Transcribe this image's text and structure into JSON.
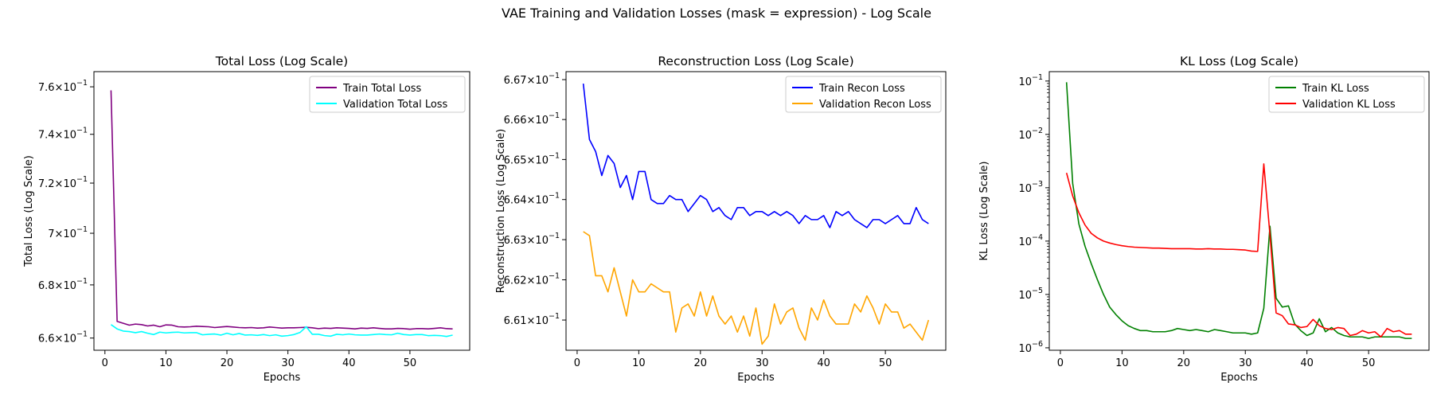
{
  "figure_title": "VAE Training and Validation Losses (mask = expression) - Log Scale",
  "chart_data": [
    {
      "type": "line",
      "title": "Total Loss (Log Scale)",
      "xlabel": "Epochs",
      "ylabel": "Total Loss (Log Scale)",
      "yscale": "log",
      "xlim": [
        -1.8,
        59.8
      ],
      "ylim": [
        0.6555,
        0.7665
      ],
      "xticks": [
        0,
        10,
        20,
        30,
        40,
        50
      ],
      "xtick_labels": [
        "0",
        "10",
        "20",
        "30",
        "40",
        "50"
      ],
      "yticks": [
        0.66,
        0.68,
        0.7,
        0.72,
        0.74,
        0.76
      ],
      "ytick_labels": [
        [
          "6.6",
          "-1"
        ],
        [
          "6.8",
          "-1"
        ],
        [
          "7",
          "-1"
        ],
        [
          "7.2",
          "-1"
        ],
        [
          "7.4",
          "-1"
        ],
        [
          "7.6",
          "-1"
        ]
      ],
      "minor_yticks": [],
      "legend_position": "upper right",
      "grid": false,
      "x": [
        1,
        2,
        3,
        4,
        5,
        6,
        7,
        8,
        9,
        10,
        11,
        12,
        13,
        14,
        15,
        16,
        17,
        18,
        19,
        20,
        21,
        22,
        23,
        24,
        25,
        26,
        27,
        28,
        29,
        30,
        31,
        32,
        33,
        34,
        35,
        36,
        37,
        38,
        39,
        40,
        41,
        42,
        43,
        44,
        45,
        46,
        47,
        48,
        49,
        50,
        51,
        52,
        53,
        54,
        55,
        56,
        57
      ],
      "series": [
        {
          "name": "Train Total Loss",
          "color": "#800080",
          "values": [
            0.7585,
            0.6662,
            0.6655,
            0.6648,
            0.6652,
            0.665,
            0.6645,
            0.6648,
            0.6642,
            0.6649,
            0.6648,
            0.6642,
            0.6641,
            0.6642,
            0.6644,
            0.6643,
            0.6642,
            0.6639,
            0.6641,
            0.6643,
            0.6641,
            0.6639,
            0.6638,
            0.6639,
            0.6637,
            0.6638,
            0.6641,
            0.6639,
            0.6637,
            0.6638,
            0.6638,
            0.6639,
            0.664,
            0.6638,
            0.6635,
            0.6637,
            0.6636,
            0.6638,
            0.6637,
            0.6636,
            0.6634,
            0.6637,
            0.6636,
            0.6638,
            0.6636,
            0.6634,
            0.6634,
            0.6636,
            0.6635,
            0.6633,
            0.6635,
            0.6635,
            0.6634,
            0.6636,
            0.6638,
            0.6635,
            0.6634
          ]
        },
        {
          "name": "Validation Total Loss",
          "color": "#00ffff",
          "values": [
            0.665,
            0.6634,
            0.6626,
            0.6624,
            0.662,
            0.6624,
            0.6618,
            0.6613,
            0.6622,
            0.6619,
            0.6621,
            0.6622,
            0.6619,
            0.662,
            0.662,
            0.6612,
            0.6614,
            0.6615,
            0.6611,
            0.6618,
            0.6612,
            0.6617,
            0.6611,
            0.6612,
            0.661,
            0.6613,
            0.6609,
            0.6612,
            0.6607,
            0.6609,
            0.6613,
            0.6621,
            0.6642,
            0.6614,
            0.6614,
            0.6609,
            0.6607,
            0.6614,
            0.6612,
            0.6615,
            0.6612,
            0.6611,
            0.6611,
            0.6613,
            0.6615,
            0.6613,
            0.6612,
            0.6618,
            0.6613,
            0.6611,
            0.6613,
            0.6613,
            0.6609,
            0.661,
            0.6609,
            0.6606,
            0.6611
          ]
        }
      ]
    },
    {
      "type": "line",
      "title": "Reconstruction Loss (Log Scale)",
      "xlabel": "Epochs",
      "ylabel": "Reconstruction Loss (Log Scale)",
      "yscale": "log",
      "xlim": [
        -1.8,
        59.8
      ],
      "ylim": [
        0.66025,
        0.6672
      ],
      "xticks": [
        0,
        10,
        20,
        30,
        40,
        50
      ],
      "xtick_labels": [
        "0",
        "10",
        "20",
        "30",
        "40",
        "50"
      ],
      "yticks": [
        0.661,
        0.662,
        0.663,
        0.664,
        0.665,
        0.666,
        0.667
      ],
      "ytick_labels": [
        [
          "6.61",
          "-1"
        ],
        [
          "6.62",
          "-1"
        ],
        [
          "6.63",
          "-1"
        ],
        [
          "6.64",
          "-1"
        ],
        [
          "6.65",
          "-1"
        ],
        [
          "6.66",
          "-1"
        ],
        [
          "6.67",
          "-1"
        ]
      ],
      "minor_yticks": [],
      "legend_position": "upper right",
      "grid": false,
      "x": [
        1,
        2,
        3,
        4,
        5,
        6,
        7,
        8,
        9,
        10,
        11,
        12,
        13,
        14,
        15,
        16,
        17,
        18,
        19,
        20,
        21,
        22,
        23,
        24,
        25,
        26,
        27,
        28,
        29,
        30,
        31,
        32,
        33,
        34,
        35,
        36,
        37,
        38,
        39,
        40,
        41,
        42,
        43,
        44,
        45,
        46,
        47,
        48,
        49,
        50,
        51,
        52,
        53,
        54,
        55,
        56,
        57
      ],
      "series": [
        {
          "name": "Train Recon Loss",
          "color": "#0000ff",
          "values": [
            0.6669,
            0.6655,
            0.6652,
            0.6646,
            0.6651,
            0.6649,
            0.6643,
            0.6646,
            0.664,
            0.6647,
            0.6647,
            0.664,
            0.6639,
            0.6639,
            0.6641,
            0.664,
            0.664,
            0.6637,
            0.6639,
            0.6641,
            0.664,
            0.6637,
            0.6638,
            0.6636,
            0.6635,
            0.6638,
            0.6638,
            0.6636,
            0.6637,
            0.6637,
            0.6636,
            0.6637,
            0.6636,
            0.6637,
            0.6636,
            0.6634,
            0.6636,
            0.6635,
            0.6635,
            0.6636,
            0.6633,
            0.6637,
            0.6636,
            0.6637,
            0.6635,
            0.6634,
            0.6633,
            0.6635,
            0.6635,
            0.6634,
            0.6635,
            0.6636,
            0.6634,
            0.6634,
            0.6638,
            0.6635,
            0.6634
          ]
        },
        {
          "name": "Validation Recon Loss",
          "color": "#ffa500",
          "values": [
            0.6632,
            0.6631,
            0.6621,
            0.6621,
            0.6617,
            0.6623,
            0.6617,
            0.6611,
            0.662,
            0.6617,
            0.6617,
            0.6619,
            0.6618,
            0.6617,
            0.6617,
            0.6607,
            0.6613,
            0.6614,
            0.6611,
            0.6617,
            0.6611,
            0.6616,
            0.6611,
            0.6609,
            0.6611,
            0.6607,
            0.6611,
            0.6606,
            0.6613,
            0.6604,
            0.6606,
            0.6614,
            0.6609,
            0.6612,
            0.6613,
            0.6608,
            0.6605,
            0.6613,
            0.661,
            0.6615,
            0.6611,
            0.6609,
            0.6609,
            0.6609,
            0.6614,
            0.6612,
            0.6616,
            0.6613,
            0.6609,
            0.6614,
            0.6612,
            0.6612,
            0.6608,
            0.6609,
            0.6607,
            0.6605,
            0.661
          ]
        }
      ]
    },
    {
      "type": "line",
      "title": "KL Loss (Log Scale)",
      "xlabel": "Epochs",
      "ylabel": "KL Loss (Log Scale)",
      "yscale": "log",
      "xlim": [
        -1.8,
        59.8
      ],
      "ylim": [
        9e-07,
        0.15
      ],
      "xticks": [
        0,
        10,
        20,
        30,
        40,
        50
      ],
      "xtick_labels": [
        "0",
        "10",
        "20",
        "30",
        "40",
        "50"
      ],
      "yticks": [
        1e-06,
        1e-05,
        0.0001,
        0.001,
        0.01,
        0.1
      ],
      "ytick_labels": [
        [
          "10",
          "-6"
        ],
        [
          "10",
          "-5"
        ],
        [
          "10",
          "-4"
        ],
        [
          "10",
          "-3"
        ],
        [
          "10",
          "-2"
        ],
        [
          "10",
          "-1"
        ]
      ],
      "minor_yticks": [
        2e-06,
        3e-06,
        4e-06,
        5e-06,
        6e-06,
        7e-06,
        8e-06,
        9e-06,
        2e-05,
        3e-05,
        4e-05,
        5e-05,
        6e-05,
        7e-05,
        8e-05,
        9e-05,
        0.0002,
        0.0003,
        0.0004,
        0.0005,
        0.0006,
        0.0007,
        0.0008,
        0.0009,
        0.002,
        0.003,
        0.004,
        0.005,
        0.006,
        0.007,
        0.008,
        0.009,
        0.02,
        0.03,
        0.04,
        0.05,
        0.06,
        0.07,
        0.08,
        0.09
      ],
      "legend_position": "upper right",
      "grid": false,
      "x": [
        1,
        2,
        3,
        4,
        5,
        6,
        7,
        8,
        9,
        10,
        11,
        12,
        13,
        14,
        15,
        16,
        17,
        18,
        19,
        20,
        21,
        22,
        23,
        24,
        25,
        26,
        27,
        28,
        29,
        30,
        31,
        32,
        33,
        34,
        35,
        36,
        37,
        38,
        39,
        40,
        41,
        42,
        43,
        44,
        45,
        46,
        47,
        48,
        49,
        50,
        51,
        52,
        53,
        54,
        55,
        56,
        57
      ],
      "series": [
        {
          "name": "Train KL Loss",
          "color": "#008000",
          "values": [
            0.095,
            0.0012,
            0.00021,
            8e-05,
            3.8e-05,
            1.9e-05,
            1e-05,
            5.8e-06,
            4.2e-06,
            3.2e-06,
            2.6e-06,
            2.3e-06,
            2.1e-06,
            2.1e-06,
            2e-06,
            2e-06,
            2e-06,
            2.1e-06,
            2.3e-06,
            2.2e-06,
            2.1e-06,
            2.2e-06,
            2.1e-06,
            2e-06,
            2.2e-06,
            2.1e-06,
            2e-06,
            1.9e-06,
            1.9e-06,
            1.9e-06,
            1.8e-06,
            1.9e-06,
            5.5e-06,
            0.00019,
            8.5e-06,
            5.8e-06,
            6.1e-06,
            2.8e-06,
            2.1e-06,
            1.7e-06,
            1.9e-06,
            3.5e-06,
            2e-06,
            2.4e-06,
            1.9e-06,
            1.7e-06,
            1.6e-06,
            1.6e-06,
            1.6e-06,
            1.5e-06,
            1.6e-06,
            1.6e-06,
            1.6e-06,
            1.6e-06,
            1.6e-06,
            1.5e-06,
            1.5e-06
          ]
        },
        {
          "name": "Validation KL Loss",
          "color": "#ff0000",
          "values": [
            0.0019,
            0.0007,
            0.00034,
            0.0002,
            0.00014,
            0.000115,
            0.0001,
            9.2e-05,
            8.6e-05,
            8.2e-05,
            7.9e-05,
            7.7e-05,
            7.6e-05,
            7.5e-05,
            7.4e-05,
            7.4e-05,
            7.3e-05,
            7.2e-05,
            7.2e-05,
            7.2e-05,
            7.2e-05,
            7.1e-05,
            7.1e-05,
            7.2e-05,
            7.1e-05,
            7.1e-05,
            7e-05,
            7e-05,
            6.9e-05,
            6.8e-05,
            6.5e-05,
            6.4e-05,
            0.0028,
            0.00013,
            4.5e-06,
            4e-06,
            2.8e-06,
            2.7e-06,
            2.4e-06,
            2.5e-06,
            3.4e-06,
            2.6e-06,
            2.3e-06,
            2.2e-06,
            2.4e-06,
            2.3e-06,
            1.7e-06,
            1.8e-06,
            2.1e-06,
            1.9e-06,
            2e-06,
            1.6e-06,
            2.3e-06,
            2e-06,
            2.1e-06,
            1.8e-06,
            1.8e-06
          ]
        }
      ]
    }
  ]
}
